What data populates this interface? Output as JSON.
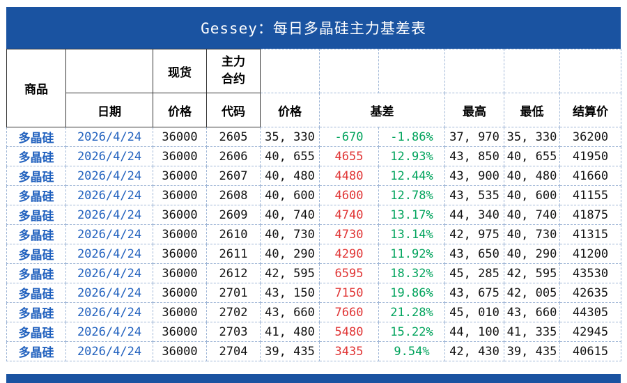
{
  "title": "Gessey：每日多晶硅主力基差表",
  "table": {
    "header": {
      "commodity": "商品",
      "date": "日期",
      "spot": "现货",
      "spot_price_label": "价格",
      "main_contract": "主力合约",
      "code": "代码",
      "price_label": "价格",
      "basis": "基差",
      "high": "最高",
      "low": "最低",
      "settlement": "结算价"
    },
    "rows": [
      {
        "commodity": "多晶硅",
        "date": "2026/4/24",
        "spot_price": "36000",
        "code": "2605",
        "price": "35, 330",
        "basis": "-670",
        "basis_pct": "-1.86%",
        "high": "37, 970",
        "low": "35, 330",
        "settlement": "36200"
      },
      {
        "commodity": "多晶硅",
        "date": "2026/4/24",
        "spot_price": "36000",
        "code": "2606",
        "price": "40, 655",
        "basis": "4655",
        "basis_pct": "12.93%",
        "high": "43, 850",
        "low": "40, 655",
        "settlement": "41950"
      },
      {
        "commodity": "多晶硅",
        "date": "2026/4/24",
        "spot_price": "36000",
        "code": "2607",
        "price": "40, 480",
        "basis": "4480",
        "basis_pct": "12.44%",
        "high": "43, 900",
        "low": "40, 480",
        "settlement": "41660"
      },
      {
        "commodity": "多晶硅",
        "date": "2026/4/24",
        "spot_price": "36000",
        "code": "2608",
        "price": "40, 600",
        "basis": "4600",
        "basis_pct": "12.78%",
        "high": "43, 535",
        "low": "40, 600",
        "settlement": "41155"
      },
      {
        "commodity": "多晶硅",
        "date": "2026/4/24",
        "spot_price": "36000",
        "code": "2609",
        "price": "40, 740",
        "basis": "4740",
        "basis_pct": "13.17%",
        "high": "44, 340",
        "low": "40, 740",
        "settlement": "41875"
      },
      {
        "commodity": "多晶硅",
        "date": "2026/4/24",
        "spot_price": "36000",
        "code": "2610",
        "price": "40, 730",
        "basis": "4730",
        "basis_pct": "13.14%",
        "high": "42, 975",
        "low": "40, 730",
        "settlement": "41315"
      },
      {
        "commodity": "多晶硅",
        "date": "2026/4/24",
        "spot_price": "36000",
        "code": "2611",
        "price": "40, 290",
        "basis": "4290",
        "basis_pct": "11.92%",
        "high": "43, 650",
        "low": "40, 290",
        "settlement": "41200"
      },
      {
        "commodity": "多晶硅",
        "date": "2026/4/24",
        "spot_price": "36000",
        "code": "2612",
        "price": "42, 595",
        "basis": "6595",
        "basis_pct": "18.32%",
        "high": "45, 285",
        "low": "42, 595",
        "settlement": "43530"
      },
      {
        "commodity": "多晶硅",
        "date": "2026/4/24",
        "spot_price": "36000",
        "code": "2701",
        "price": "43, 150",
        "basis": "7150",
        "basis_pct": "19.86%",
        "high": "43, 675",
        "low": "42, 005",
        "settlement": "42635"
      },
      {
        "commodity": "多晶硅",
        "date": "2026/4/24",
        "spot_price": "36000",
        "code": "2702",
        "price": "43, 660",
        "basis": "7660",
        "basis_pct": "21.28%",
        "high": "45, 010",
        "low": "43, 660",
        "settlement": "44305"
      },
      {
        "commodity": "多晶硅",
        "date": "2026/4/24",
        "spot_price": "36000",
        "code": "2703",
        "price": "41, 480",
        "basis": "5480",
        "basis_pct": "15.22%",
        "high": "44, 100",
        "low": "41, 335",
        "settlement": "42945"
      },
      {
        "commodity": "多晶硅",
        "date": "2026/4/24",
        "spot_price": "36000",
        "code": "2704",
        "price": "39, 435",
        "basis": "3435",
        "basis_pct": "9.54%",
        "high": "42, 430",
        "low": "39, 435",
        "settlement": "40615"
      }
    ]
  },
  "colors": {
    "title_bar": "#1A53A1",
    "blue_text": "#2161BE",
    "basis_positive": "#E03434",
    "basis_negative": "#00A35C",
    "border_dashed": "#9FB6D6"
  }
}
